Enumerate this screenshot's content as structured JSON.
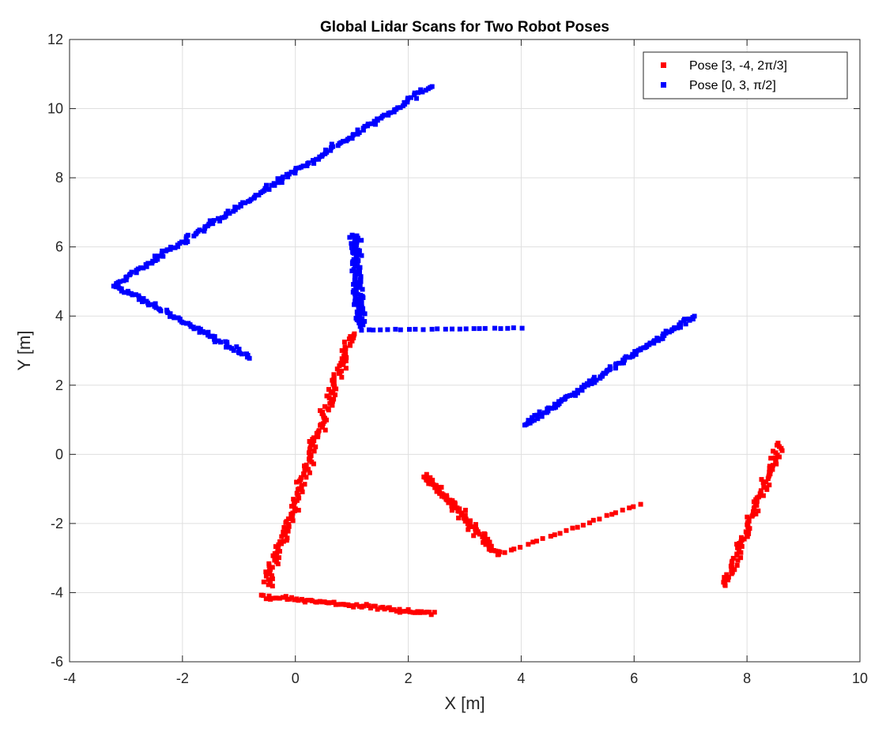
{
  "chart_data": {
    "type": "scatter",
    "title": "Global Lidar Scans for Two Robot Poses",
    "xlabel": "X [m]",
    "ylabel": "Y [m]",
    "xlim": [
      -4,
      10
    ],
    "ylim": [
      -6,
      12
    ],
    "xticks": [
      -4,
      -2,
      0,
      2,
      4,
      6,
      8,
      10
    ],
    "yticks": [
      -6,
      -4,
      -2,
      0,
      2,
      4,
      6,
      8,
      10,
      12
    ],
    "grid": true,
    "legend_position": "top-right",
    "series": [
      {
        "name": "Pose [3, -4, 2π/3]",
        "color": "#ff0000",
        "segments": [
          {
            "from": [
              1.0,
              3.5
            ],
            "to": [
              -0.5,
              -3.8
            ],
            "count": 170,
            "noise": 0.09
          },
          {
            "from": [
              -0.6,
              -4.1
            ],
            "to": [
              2.45,
              -4.6
            ],
            "count": 75,
            "noise": 0.06
          },
          {
            "from": [
              2.3,
              -0.6
            ],
            "to": [
              3.6,
              -2.9
            ],
            "count": 95,
            "noise": 0.09
          },
          {
            "from": [
              3.6,
              -2.9
            ],
            "to": [
              6.1,
              -1.45
            ],
            "count": 26,
            "noise": 0.02
          },
          {
            "from": [
              7.6,
              -3.8
            ],
            "to": [
              8.6,
              0.3
            ],
            "count": 95,
            "noise": 0.08
          }
        ]
      },
      {
        "name": "Pose [0, 3, π/2]",
        "color": "#0000ff",
        "segments": [
          {
            "from": [
              -3.2,
              4.9
            ],
            "to": [
              2.4,
              10.65
            ],
            "count": 170,
            "noise": 0.07
          },
          {
            "from": [
              -3.2,
              4.9
            ],
            "to": [
              -0.8,
              2.8
            ],
            "count": 75,
            "noise": 0.06
          },
          {
            "from": [
              1.05,
              6.35
            ],
            "to": [
              1.15,
              3.7
            ],
            "count": 110,
            "noise": 0.09
          },
          {
            "from": [
              1.15,
              3.6
            ],
            "to": [
              4.0,
              3.65
            ],
            "count": 24,
            "noise": 0.01
          },
          {
            "from": [
              4.05,
              0.85
            ],
            "to": [
              7.05,
              4.0
            ],
            "count": 120,
            "noise": 0.07
          }
        ]
      }
    ]
  }
}
